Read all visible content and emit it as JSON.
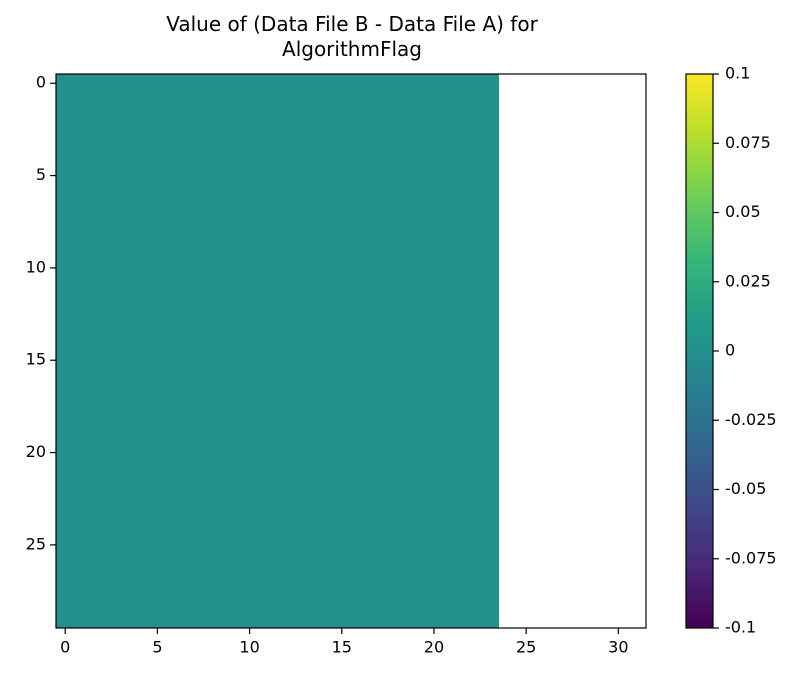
{
  "chart_data": {
    "type": "heatmap",
    "title": "Value of (Data File B - Data File A) for AlgorithmFlag",
    "colormap": "viridis",
    "clim": [
      -0.1,
      0.1
    ],
    "xlim": [
      -0.5,
      31.5
    ],
    "xticks": [
      0,
      5,
      10,
      15,
      20,
      25,
      30
    ],
    "ylim": [
      29.5,
      -0.5
    ],
    "yticks": [
      0,
      5,
      10,
      15,
      20,
      25
    ],
    "colorbar_ticks": [
      -0.1,
      -0.075,
      -0.05,
      -0.025,
      0,
      0.025,
      0.05,
      0.075,
      0.1
    ],
    "values": [
      [
        0,
        0,
        0,
        0,
        0,
        0,
        0,
        0,
        0,
        0,
        0,
        0,
        0,
        0,
        0,
        0,
        0,
        0,
        0,
        0,
        0,
        0,
        0,
        0,
        null,
        null,
        null,
        null,
        null,
        null,
        null,
        null
      ],
      [
        0,
        0,
        0,
        0,
        0,
        0,
        0,
        0,
        0,
        0,
        0,
        0,
        0,
        0,
        0,
        0,
        0,
        0,
        0,
        0,
        0,
        0,
        0,
        0,
        null,
        null,
        null,
        null,
        null,
        null,
        null,
        null
      ],
      [
        0,
        0,
        0,
        0,
        0,
        0,
        0,
        0,
        0,
        0,
        0,
        0,
        0,
        0,
        0,
        0,
        0,
        0,
        0,
        0,
        0,
        0,
        0,
        0,
        null,
        null,
        null,
        null,
        null,
        null,
        null,
        null
      ],
      [
        0,
        0,
        0,
        0,
        0,
        0,
        0,
        0,
        0,
        0,
        0,
        0,
        0,
        0,
        0,
        0,
        0,
        0,
        0,
        0,
        0,
        0,
        0,
        0,
        null,
        null,
        null,
        null,
        null,
        null,
        null,
        null
      ],
      [
        0,
        0,
        0,
        0,
        0,
        0,
        0,
        0,
        0,
        0,
        0,
        0,
        0,
        0,
        0,
        0,
        0,
        0,
        0,
        0,
        0,
        0,
        0,
        0,
        null,
        null,
        null,
        null,
        null,
        null,
        null,
        null
      ],
      [
        0,
        0,
        0,
        0,
        0,
        0,
        0,
        0,
        0,
        0,
        0,
        0,
        0,
        0,
        0,
        0,
        0,
        0,
        0,
        0,
        0,
        0,
        0,
        0,
        null,
        null,
        null,
        null,
        null,
        null,
        null,
        null
      ],
      [
        0,
        0,
        0,
        0,
        0,
        0,
        0,
        0,
        0,
        0,
        0,
        0,
        0,
        0,
        0,
        0,
        0,
        0,
        0,
        0,
        0,
        0,
        0,
        0,
        null,
        null,
        null,
        null,
        null,
        null,
        null,
        null
      ],
      [
        0,
        0,
        0,
        0,
        0,
        0,
        0,
        0,
        0,
        0,
        0,
        0,
        0,
        0,
        0,
        0,
        0,
        0,
        0,
        0,
        0,
        0,
        0,
        0,
        null,
        null,
        null,
        null,
        null,
        null,
        null,
        null
      ],
      [
        0,
        0,
        0,
        0,
        0,
        0,
        0,
        0,
        0,
        0,
        0,
        0,
        0,
        0,
        0,
        0,
        0,
        0,
        0,
        0,
        0,
        0,
        0,
        0,
        null,
        null,
        null,
        null,
        null,
        null,
        null,
        null
      ],
      [
        0,
        0,
        0,
        0,
        0,
        0,
        0,
        0,
        0,
        0,
        0,
        0,
        0,
        0,
        0,
        0,
        0,
        0,
        0,
        0,
        0,
        0,
        0,
        0,
        null,
        null,
        null,
        null,
        null,
        null,
        null,
        null
      ],
      [
        0,
        0,
        0,
        0,
        0,
        0,
        0,
        0,
        0,
        0,
        0,
        0,
        0,
        0,
        0,
        0,
        0,
        0,
        0,
        0,
        0,
        0,
        0,
        0,
        null,
        null,
        null,
        null,
        null,
        null,
        null,
        null
      ],
      [
        0,
        0,
        0,
        0,
        0,
        0,
        0,
        0,
        0,
        0,
        0,
        0,
        0,
        0,
        0,
        0,
        0,
        0,
        0,
        0,
        0,
        0,
        0,
        0,
        null,
        null,
        null,
        null,
        null,
        null,
        null,
        null
      ],
      [
        0,
        0,
        0,
        0,
        0,
        0,
        0,
        0,
        0,
        0,
        0,
        0,
        0,
        0,
        0,
        0,
        0,
        0,
        0,
        0,
        0,
        0,
        0,
        0,
        null,
        null,
        null,
        null,
        null,
        null,
        null,
        null
      ],
      [
        0,
        0,
        0,
        0,
        0,
        0,
        0,
        0,
        0,
        0,
        0,
        0,
        0,
        0,
        0,
        0,
        0,
        0,
        0,
        0,
        0,
        0,
        0,
        0,
        null,
        null,
        null,
        null,
        null,
        null,
        null,
        null
      ],
      [
        0,
        0,
        0,
        0,
        0,
        0,
        0,
        0,
        0,
        0,
        0,
        0,
        0,
        0,
        0,
        0,
        0,
        0,
        0,
        0,
        0,
        0,
        0,
        0,
        null,
        null,
        null,
        null,
        null,
        null,
        null,
        null
      ],
      [
        0,
        0,
        0,
        0,
        0,
        0,
        0,
        0,
        0,
        0,
        0,
        0,
        0,
        0,
        0,
        0,
        0,
        0,
        0,
        0,
        0,
        0,
        0,
        0,
        null,
        null,
        null,
        null,
        null,
        null,
        null,
        null
      ],
      [
        0,
        0,
        0,
        0,
        0,
        0,
        0,
        0,
        0,
        0,
        0,
        0,
        0,
        0,
        0,
        0,
        0,
        0,
        0,
        0,
        0,
        0,
        0,
        0,
        null,
        null,
        null,
        null,
        null,
        null,
        null,
        null
      ],
      [
        0,
        0,
        0,
        0,
        0,
        0,
        0,
        0,
        0,
        0,
        0,
        0,
        0,
        0,
        0,
        0,
        0,
        0,
        0,
        0,
        0,
        0,
        0,
        0,
        null,
        null,
        null,
        null,
        null,
        null,
        null,
        null
      ],
      [
        0,
        0,
        0,
        0,
        0,
        0,
        0,
        0,
        0,
        0,
        0,
        0,
        0,
        0,
        0,
        0,
        0,
        0,
        0,
        0,
        0,
        0,
        0,
        0,
        null,
        null,
        null,
        null,
        null,
        null,
        null,
        null
      ],
      [
        0,
        0,
        0,
        0,
        0,
        0,
        0,
        0,
        0,
        0,
        0,
        0,
        0,
        0,
        0,
        0,
        0,
        0,
        0,
        0,
        0,
        0,
        0,
        0,
        null,
        null,
        null,
        null,
        null,
        null,
        null,
        null
      ],
      [
        0,
        0,
        0,
        0,
        0,
        0,
        0,
        0,
        0,
        0,
        0,
        0,
        0,
        0,
        0,
        0,
        0,
        0,
        0,
        0,
        0,
        0,
        0,
        0,
        null,
        null,
        null,
        null,
        null,
        null,
        null,
        null
      ],
      [
        0,
        0,
        0,
        0,
        0,
        0,
        0,
        0,
        0,
        0,
        0,
        0,
        0,
        0,
        0,
        0,
        0,
        0,
        0,
        0,
        0,
        0,
        0,
        0,
        null,
        null,
        null,
        null,
        null,
        null,
        null,
        null
      ],
      [
        0,
        0,
        0,
        0,
        0,
        0,
        0,
        0,
        0,
        0,
        0,
        0,
        0,
        0,
        0,
        0,
        0,
        0,
        0,
        0,
        0,
        0,
        0,
        0,
        null,
        null,
        null,
        null,
        null,
        null,
        null,
        null
      ],
      [
        0,
        0,
        0,
        0,
        0,
        0,
        0,
        0,
        0,
        0,
        0,
        0,
        0,
        0,
        0,
        0,
        0,
        0,
        0,
        0,
        0,
        0,
        0,
        0,
        null,
        null,
        null,
        null,
        null,
        null,
        null,
        null
      ],
      [
        0,
        0,
        0,
        0,
        0,
        0,
        0,
        0,
        0,
        0,
        0,
        0,
        0,
        0,
        0,
        0,
        0,
        0,
        0,
        0,
        0,
        0,
        0,
        0,
        null,
        null,
        null,
        null,
        null,
        null,
        null,
        null
      ],
      [
        0,
        0,
        0,
        0,
        0,
        0,
        0,
        0,
        0,
        0,
        0,
        0,
        0,
        0,
        0,
        0,
        0,
        0,
        0,
        0,
        0,
        0,
        0,
        0,
        null,
        null,
        null,
        null,
        null,
        null,
        null,
        null
      ],
      [
        0,
        0,
        0,
        0,
        0,
        0,
        0,
        0,
        0,
        0,
        0,
        0,
        0,
        0,
        0,
        0,
        0,
        0,
        0,
        0,
        0,
        0,
        0,
        0,
        null,
        null,
        null,
        null,
        null,
        null,
        null,
        null
      ],
      [
        0,
        0,
        0,
        0,
        0,
        0,
        0,
        0,
        0,
        0,
        0,
        0,
        0,
        0,
        0,
        0,
        0,
        0,
        0,
        0,
        0,
        0,
        0,
        0,
        null,
        null,
        null,
        null,
        null,
        null,
        null,
        null
      ],
      [
        0,
        0,
        0,
        0,
        0,
        0,
        0,
        0,
        0,
        0,
        0,
        0,
        0,
        0,
        0,
        0,
        0,
        0,
        0,
        0,
        0,
        0,
        0,
        0,
        null,
        null,
        null,
        null,
        null,
        null,
        null,
        null
      ],
      [
        0,
        0,
        0,
        0,
        0,
        0,
        0,
        0,
        0,
        0,
        0,
        0,
        0,
        0,
        0,
        0,
        0,
        0,
        0,
        0,
        0,
        0,
        0,
        0,
        null,
        null,
        null,
        null,
        null,
        null,
        null,
        null
      ]
    ]
  }
}
